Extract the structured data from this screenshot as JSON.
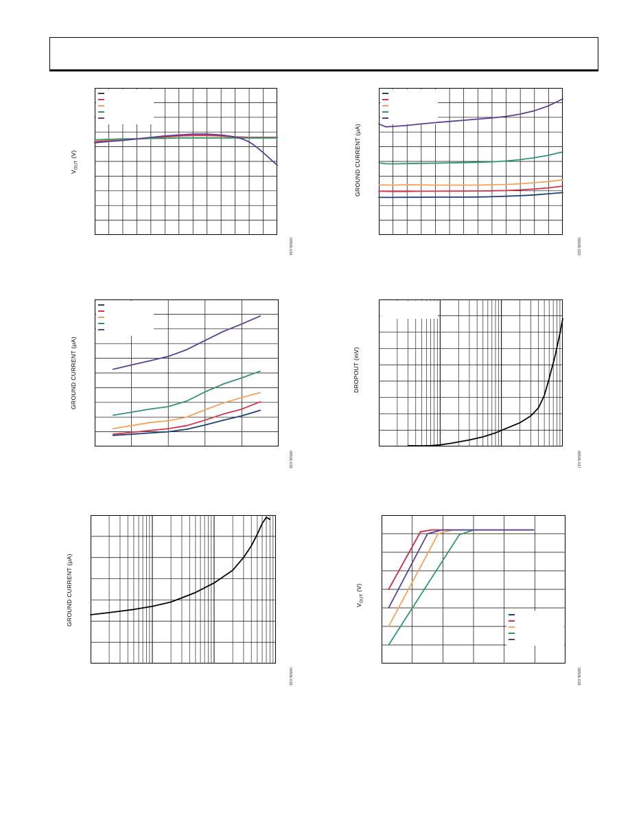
{
  "colors": {
    "navy": "#1f3f7a",
    "red": "#d6334a",
    "orange": "#f4a15c",
    "green": "#2e9668",
    "purple": "#5a3d97",
    "black": "#000000",
    "grid": "#000000"
  },
  "chart_data": [
    {
      "id": "c1",
      "type": "line",
      "ylabel_main": "V",
      "ylabel_sub": "OUT",
      "ylabel_unit": " (V)",
      "figure_id": "06506-016",
      "grid": {
        "cols": 13,
        "rows": 10,
        "log_x": false
      },
      "legend": {
        "present": true,
        "placement": "top-left",
        "entries": 5
      },
      "series": [
        {
          "color": "navy",
          "x": [
            0,
            1,
            2,
            3,
            4,
            5,
            6,
            7,
            8,
            9,
            10,
            11,
            12,
            13
          ],
          "y": [
            5.88,
            5.91,
            5.93,
            5.96,
            5.98,
            6.0,
            6.02,
            6.03,
            6.03,
            6.02,
            6.0,
            5.99,
            5.99,
            5.99
          ]
        },
        {
          "color": "red",
          "x": [
            0,
            1,
            2,
            3,
            4,
            5,
            6,
            7,
            8,
            9,
            10,
            11,
            12,
            13
          ],
          "y": [
            5.9,
            5.92,
            5.94,
            5.96,
            5.98,
            6.0,
            6.02,
            6.03,
            6.03,
            6.02,
            6.0,
            5.99,
            5.99,
            5.99
          ]
        },
        {
          "color": "orange",
          "x": [
            0,
            1,
            2,
            3,
            4,
            5,
            6,
            7,
            8,
            9,
            10,
            11,
            12,
            13
          ],
          "y": [
            5.93,
            5.94,
            5.95,
            5.96,
            5.97,
            5.97,
            5.98,
            5.98,
            5.98,
            5.98,
            5.98,
            5.98,
            5.98,
            5.98
          ]
        },
        {
          "color": "green",
          "x": [
            0,
            1,
            2,
            3,
            4,
            5,
            6,
            7,
            8,
            9,
            10,
            11,
            12,
            13
          ],
          "y": [
            5.94,
            5.95,
            5.96,
            5.96,
            5.97,
            5.97,
            5.98,
            5.98,
            5.98,
            5.98,
            5.98,
            5.98,
            5.98,
            5.98
          ]
        },
        {
          "color": "purple",
          "x": [
            0,
            1,
            2,
            3,
            4,
            5,
            6,
            7,
            8,
            9,
            10,
            10.5,
            11,
            11.5,
            12,
            12.5,
            13
          ],
          "y": [
            5.88,
            5.91,
            5.93,
            5.96,
            5.99,
            6.02,
            6.04,
            6.06,
            6.06,
            6.04,
            6.0,
            5.96,
            5.9,
            5.8,
            5.68,
            5.55,
            5.42
          ]
        }
      ],
      "ylim": [
        4.0,
        7.0
      ],
      "xlim": [
        0,
        13
      ]
    },
    {
      "id": "c2",
      "type": "line",
      "ylabel_main": "GROUND CURRENT (μA)",
      "figure_id": "06506-020",
      "grid": {
        "cols": 13,
        "rows": 10,
        "log_x": false
      },
      "legend": {
        "present": true,
        "placement": "top-left",
        "entries": 5
      },
      "series": [
        {
          "color": "navy",
          "x": [
            0,
            1,
            2,
            3,
            4,
            5,
            6,
            7,
            8,
            9,
            10,
            11,
            12,
            13
          ],
          "y": [
            2.55,
            2.55,
            2.56,
            2.56,
            2.57,
            2.57,
            2.57,
            2.58,
            2.6,
            2.63,
            2.67,
            2.72,
            2.8,
            2.88
          ]
        },
        {
          "color": "red",
          "x": [
            0,
            1,
            2,
            3,
            4,
            5,
            6,
            7,
            8,
            9,
            10,
            11,
            12,
            13
          ],
          "y": [
            2.97,
            2.96,
            2.96,
            2.97,
            2.97,
            2.98,
            2.98,
            2.99,
            3.0,
            3.02,
            3.06,
            3.12,
            3.2,
            3.32
          ]
        },
        {
          "color": "orange",
          "x": [
            0,
            1,
            2,
            3,
            4,
            5,
            6,
            7,
            8,
            9,
            10,
            11,
            12,
            13
          ],
          "y": [
            3.4,
            3.39,
            3.41,
            3.4,
            3.39,
            3.39,
            3.39,
            3.39,
            3.41,
            3.43,
            3.48,
            3.55,
            3.63,
            3.75
          ]
        },
        {
          "color": "green",
          "x": [
            0,
            0.5,
            1,
            2,
            3,
            4,
            5,
            6,
            7,
            8,
            9,
            10,
            11,
            12,
            13
          ],
          "y": [
            4.9,
            4.84,
            4.83,
            4.85,
            4.87,
            4.88,
            4.9,
            4.92,
            4.94,
            4.97,
            5.03,
            5.12,
            5.25,
            5.42,
            5.65
          ]
        },
        {
          "color": "purple",
          "x": [
            0,
            0.5,
            1,
            2,
            3,
            4,
            5,
            6,
            7,
            8,
            9,
            10,
            11,
            12,
            13
          ],
          "y": [
            7.55,
            7.35,
            7.38,
            7.45,
            7.55,
            7.64,
            7.72,
            7.8,
            7.88,
            7.96,
            8.06,
            8.22,
            8.45,
            8.78,
            9.25
          ]
        }
      ],
      "ylim": [
        0,
        10
      ],
      "xlim": [
        0,
        13
      ]
    },
    {
      "id": "c3",
      "type": "line",
      "ylabel_main": "GROUND CURRENT (μA)",
      "figure_id": "06506-018",
      "grid": {
        "cols": 5,
        "rows": 10,
        "log_x": false
      },
      "legend": {
        "present": true,
        "placement": "top-left",
        "entries": 5
      },
      "series": [
        {
          "color": "navy",
          "x": [
            0.5,
            1,
            1.5,
            2,
            2.5,
            3,
            3.5,
            4,
            4.5
          ],
          "y": [
            1.8,
            2.0,
            2.2,
            2.4,
            2.8,
            3.5,
            4.3,
            5.0,
            5.9
          ]
        },
        {
          "color": "red",
          "x": [
            0.5,
            1,
            1.5,
            2,
            2.5,
            3,
            3.5,
            4,
            4.5
          ],
          "y": [
            2.0,
            2.3,
            2.6,
            2.9,
            3.4,
            4.3,
            5.3,
            6.1,
            7.3
          ]
        },
        {
          "color": "orange",
          "x": [
            0.5,
            1,
            1.5,
            2,
            2.5,
            3,
            3.5,
            4,
            4.5
          ],
          "y": [
            2.9,
            3.4,
            3.9,
            4.2,
            4.8,
            6.0,
            7.1,
            8.0,
            8.8
          ]
        },
        {
          "color": "green",
          "x": [
            0.5,
            1,
            1.5,
            2,
            2.5,
            3,
            3.5,
            4,
            4.5
          ],
          "y": [
            5.1,
            5.6,
            6.1,
            6.5,
            7.4,
            8.9,
            10.2,
            11.2,
            12.3
          ]
        },
        {
          "color": "purple",
          "x": [
            0.5,
            1,
            1.5,
            2,
            2.5,
            3,
            3.5,
            4,
            4.5
          ],
          "y": [
            12.6,
            13.3,
            14.0,
            14.7,
            15.8,
            17.3,
            18.8,
            20.0,
            21.3
          ]
        }
      ],
      "ylim": [
        0,
        24
      ],
      "xlim": [
        0,
        5
      ]
    },
    {
      "id": "c4",
      "type": "line",
      "ylabel_main": "DROPOUT (mV)",
      "figure_id": "06506-017",
      "grid": {
        "cols": 3,
        "rows": 9,
        "log_x": true,
        "log_decades": 3
      },
      "legend": {
        "present": true,
        "placement": "top-left",
        "entries": 0
      },
      "series": [
        {
          "color": "black",
          "x": [
            0.3,
            0.4,
            0.55,
            0.7,
            1,
            1.5,
            2,
            3,
            5,
            8,
            12,
            20,
            30,
            40,
            50,
            60,
            75,
            90,
            100
          ],
          "y": [
            7.5,
            6,
            6,
            7.5,
            14,
            28,
            40,
            58,
            85,
            120,
            160,
            210,
            270,
            340,
            450,
            600,
            800,
            1000,
            1130
          ]
        }
      ],
      "ylim": [
        0,
        1300
      ],
      "xlim": [
        0.1,
        100
      ]
    },
    {
      "id": "c5",
      "type": "line",
      "ylabel_main": "GROUND CURRENT (μA)",
      "figure_id": "06506-019",
      "grid": {
        "cols": 3,
        "rows": 7,
        "log_x": true,
        "log_decades": 3
      },
      "legend": {
        "present": false,
        "entries": 0
      },
      "series": [
        {
          "color": "black",
          "x": [
            0.1,
            0.2,
            0.5,
            1,
            2,
            5,
            10,
            20,
            30,
            40,
            50,
            60,
            70,
            80
          ],
          "y": [
            2.3,
            2.4,
            2.55,
            2.7,
            2.9,
            3.35,
            3.8,
            4.4,
            5.0,
            5.55,
            6.1,
            6.6,
            6.9,
            6.8
          ]
        }
      ],
      "ylim": [
        0,
        7
      ],
      "xlim": [
        0.1,
        100
      ]
    },
    {
      "id": "c6",
      "type": "line",
      "ylabel_main": "V",
      "ylabel_sub": "OUT",
      "ylabel_unit": " (V)",
      "figure_id": "06506-018",
      "grid": {
        "cols": 6,
        "rows": 8,
        "log_x": false
      },
      "legend": {
        "present": true,
        "placement": "bottom-right",
        "entries": 5
      },
      "series": [
        {
          "color": "navy",
          "x": [
            0.0,
            0.9,
            1.2,
            4.1
          ],
          "y": [
            4.0,
            7.1,
            7.2,
            7.2
          ]
        },
        {
          "color": "red",
          "x": [
            0.0,
            0.9,
            1.2,
            4.1
          ],
          "y": [
            4.0,
            7.1,
            7.2,
            7.2
          ]
        },
        {
          "color": "orange",
          "x": [
            0.0,
            1.4,
            1.8,
            4.1
          ],
          "y": [
            2.0,
            7.0,
            7.2,
            7.2
          ]
        },
        {
          "color": "green",
          "x": [
            0.0,
            2.0,
            2.4,
            4.1
          ],
          "y": [
            1.0,
            6.95,
            7.2,
            7.2
          ]
        },
        {
          "color": "purple",
          "x": [
            0.0,
            1.1,
            1.5,
            4.1
          ],
          "y": [
            3.0,
            7.0,
            7.2,
            7.2
          ]
        }
      ],
      "ylim": [
        0,
        8
      ],
      "xlim": [
        -0.2,
        5.0
      ]
    }
  ]
}
